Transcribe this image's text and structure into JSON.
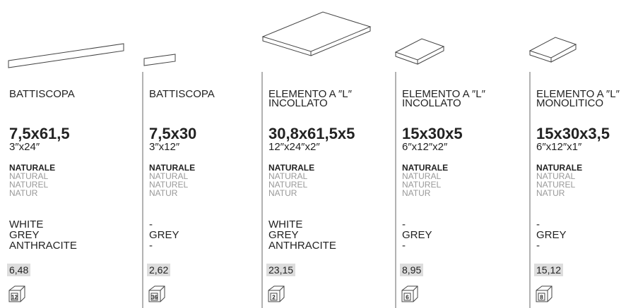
{
  "columns": [
    {
      "name": [
        "BATTISCOPA"
      ],
      "size": "7,5x61,5",
      "inch": "3″x24″",
      "finish": [
        "NATURALE",
        "NATURAL",
        "NATUREL",
        "NATUR"
      ],
      "colors": [
        "WHITE",
        "GREY",
        "ANTHRACITE"
      ],
      "price": "6,48",
      "box": "12"
    },
    {
      "name": [
        "BATTISCOPA"
      ],
      "size": "7,5x30",
      "inch": "3″x12″",
      "finish": [
        "NATURALE",
        "NATURAL",
        "NATUREL",
        "NATUR"
      ],
      "colors": [
        "-",
        "GREY",
        "-"
      ],
      "price": "2,62",
      "box": "36"
    },
    {
      "name": [
        "ELEMENTO A ″L″",
        "INCOLLATO"
      ],
      "size": "30,8x61,5x5",
      "inch": "12″x24″x2″",
      "finish": [
        "NATURALE",
        "NATURAL",
        "NATUREL",
        "NATUR"
      ],
      "colors": [
        "WHITE",
        "GREY",
        "ANTHRACITE"
      ],
      "price": "23,15",
      "box": "2"
    },
    {
      "name": [
        "ELEMENTO A ″L″",
        "INCOLLATO"
      ],
      "size": "15x30x5",
      "inch": "6″x12″x2″",
      "finish": [
        "NATURALE",
        "NATURAL",
        "NATUREL",
        "NATUR"
      ],
      "colors": [
        "-",
        "GREY",
        "-"
      ],
      "price": "8,95",
      "box": "6"
    },
    {
      "name": [
        "ELEMENTO A ″L″",
        "MONOLITICO"
      ],
      "size": "15x30x3,5",
      "inch": "6″x12″x1″",
      "finish": [
        "NATURALE",
        "NATURAL",
        "NATUREL",
        "NATUR"
      ],
      "colors": [
        "-",
        "GREY",
        "-"
      ],
      "price": "15,12",
      "box": "8"
    }
  ]
}
